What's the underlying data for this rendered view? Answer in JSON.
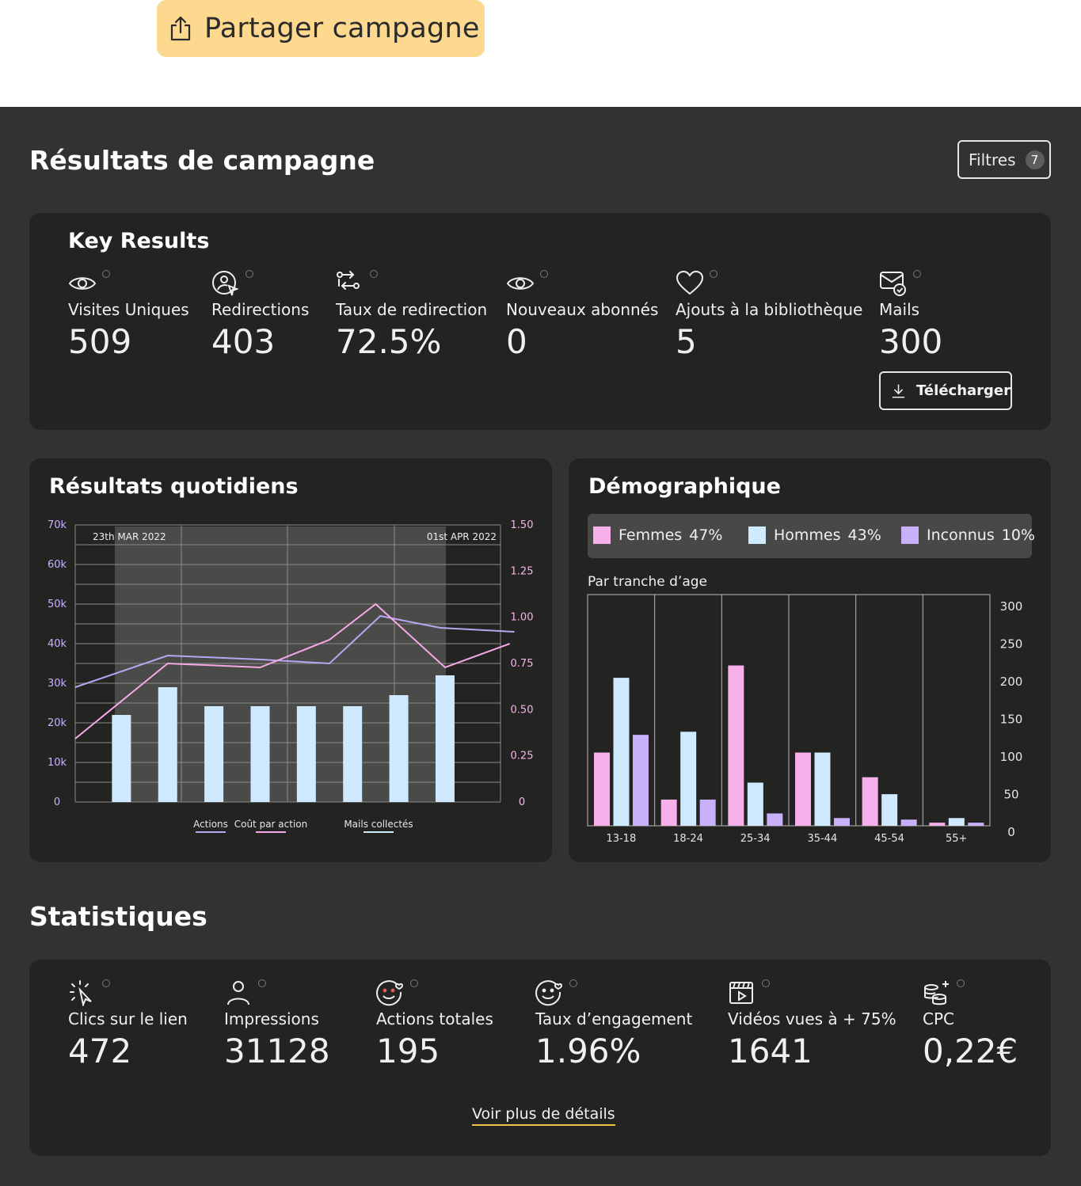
{
  "share": {
    "label": "Partager campagne",
    "icon": "share-icon"
  },
  "page": {
    "title": "Résultats de campagne"
  },
  "filters": {
    "label": "Filtres",
    "count": "7"
  },
  "key_results": {
    "title": "Key Results",
    "items": [
      {
        "icon": "eye-icon",
        "label": "Visites Uniques",
        "value": "509"
      },
      {
        "icon": "user-cursor-icon",
        "label": "Redirections",
        "value": "403"
      },
      {
        "icon": "redirect-route-icon",
        "label": "Taux de redirection",
        "value": "72.5%"
      },
      {
        "icon": "eye-icon",
        "label": "Nouveaux abonnés",
        "value": "0"
      },
      {
        "icon": "heart-icon",
        "label": "Ajouts à la bibliothèque",
        "value": "5"
      },
      {
        "icon": "mail-check-icon",
        "label": "Mails",
        "value": "300"
      }
    ],
    "download_label": "Télécharger"
  },
  "daily": {
    "title": "Résultats quotidiens",
    "chart_data": {
      "type": "bar",
      "y_left_ticks": [
        "70k",
        "60k",
        "50k",
        "40k",
        "30k",
        "20k",
        "10k",
        "0"
      ],
      "y_left_range": [
        0,
        70000
      ],
      "y_right_ticks": [
        "1.50",
        "1.25",
        "1.00",
        "0.75",
        "0.50",
        "0.25",
        "0"
      ],
      "y_right_range": [
        0,
        1.5
      ],
      "date_start_label": "23th MAR 2022",
      "date_end_label": "01st APR 2022",
      "grid": true,
      "series": [
        {
          "name": "Mails collectés",
          "kind": "bar",
          "axis": "left",
          "color": "#cfe9fe",
          "x": [
            1,
            2,
            3,
            4,
            5,
            6,
            7,
            8
          ],
          "values": [
            22000,
            29000,
            24200,
            24200,
            24200,
            24200,
            27000,
            32000
          ]
        },
        {
          "name": "Actions",
          "kind": "line",
          "axis": "left",
          "color": "#b8a6f4",
          "x": [
            0,
            2,
            4,
            5.5,
            6.6,
            7.9,
            9.5
          ],
          "values": [
            29000,
            37000,
            36000,
            35000,
            47000,
            44000,
            43000
          ]
        },
        {
          "name": "Coût  par action",
          "kind": "line",
          "axis": "left",
          "color": "#f6a9e6",
          "x": [
            0,
            2,
            4,
            5.5,
            6.5,
            8,
            9.4
          ],
          "values": [
            16000,
            35000,
            34000,
            41000,
            50000,
            34000,
            40000
          ]
        }
      ],
      "legend": [
        "Actions",
        "Coût  par action",
        "Mails collectés"
      ]
    }
  },
  "demo": {
    "title": "Démographique",
    "legend": [
      {
        "label": "Femmes",
        "pct": "47%",
        "color": "#f8b0ec"
      },
      {
        "label": "Hommes",
        "pct": "43%",
        "color": "#cfe9fe"
      },
      {
        "label": "Inconnus",
        "pct": "10%",
        "color": "#c9b0fb"
      }
    ],
    "subtitle": "Par tranche d’age",
    "chart_data": {
      "type": "bar",
      "categories": [
        "13-18",
        "18-24",
        "25-34",
        "35-44",
        "45-54",
        "55+"
      ],
      "y_ticks": [
        "300",
        "250",
        "200",
        "150",
        "100",
        "50",
        "0"
      ],
      "ylim": [
        0,
        300
      ],
      "series": [
        {
          "name": "Femmes",
          "color": "#f8b0ec",
          "values": [
            95,
            34,
            208,
            95,
            63,
            4
          ]
        },
        {
          "name": "Hommes",
          "color": "#cfe9fe",
          "values": [
            192,
            122,
            56,
            95,
            41,
            10
          ]
        },
        {
          "name": "Inconnus",
          "color": "#c9b0fb",
          "values": [
            118,
            34,
            16,
            10,
            8,
            4
          ]
        }
      ]
    }
  },
  "stats": {
    "title": "Statistiques",
    "items": [
      {
        "icon": "click-cursor-icon",
        "label": "Clics sur le lien",
        "value": "472"
      },
      {
        "icon": "person-icon",
        "label": "Impressions",
        "value": "31128"
      },
      {
        "icon": "smiley-heart-icon",
        "label": "Actions totales",
        "value": "195"
      },
      {
        "icon": "smiley-heart-icon",
        "label": "Taux d’engagement",
        "value": "1.96%"
      },
      {
        "icon": "video-clapper-icon",
        "label": "Vidéos vues à + 75%",
        "value": "1641"
      },
      {
        "icon": "coins-plus-icon",
        "label": "CPC",
        "value": "0,22€"
      }
    ],
    "details_link": "Voir plus de détails"
  }
}
